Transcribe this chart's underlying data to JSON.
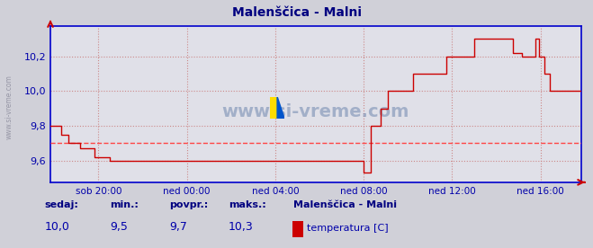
{
  "title": "Malenščica - Malni",
  "bg_color": "#d0d0d8",
  "plot_bg_color": "#e0e0e8",
  "grid_color": "#cc8888",
  "line_color": "#cc0000",
  "avg_line_color": "#ff4444",
  "x_labels": [
    "sob 20:00",
    "ned 00:00",
    "ned 04:00",
    "ned 08:00",
    "ned 12:00",
    "ned 16:00"
  ],
  "y_min": 9.475,
  "y_max": 10.375,
  "y_ticks": [
    9.6,
    9.8,
    10.0,
    10.2
  ],
  "avg_value": 9.7,
  "sedaj": "10,0",
  "min_val": "9,5",
  "povpr": "9,7",
  "maks": "10,3",
  "station": "Malenščica - Malni",
  "legend_label": "temperatura [C]",
  "watermark": "www.si-vreme.com",
  "title_color": "#000080",
  "axis_color": "#0000aa",
  "label_color": "#000080",
  "value_color": "#0000aa",
  "spine_color": "#0000cc",
  "n_points": 289
}
